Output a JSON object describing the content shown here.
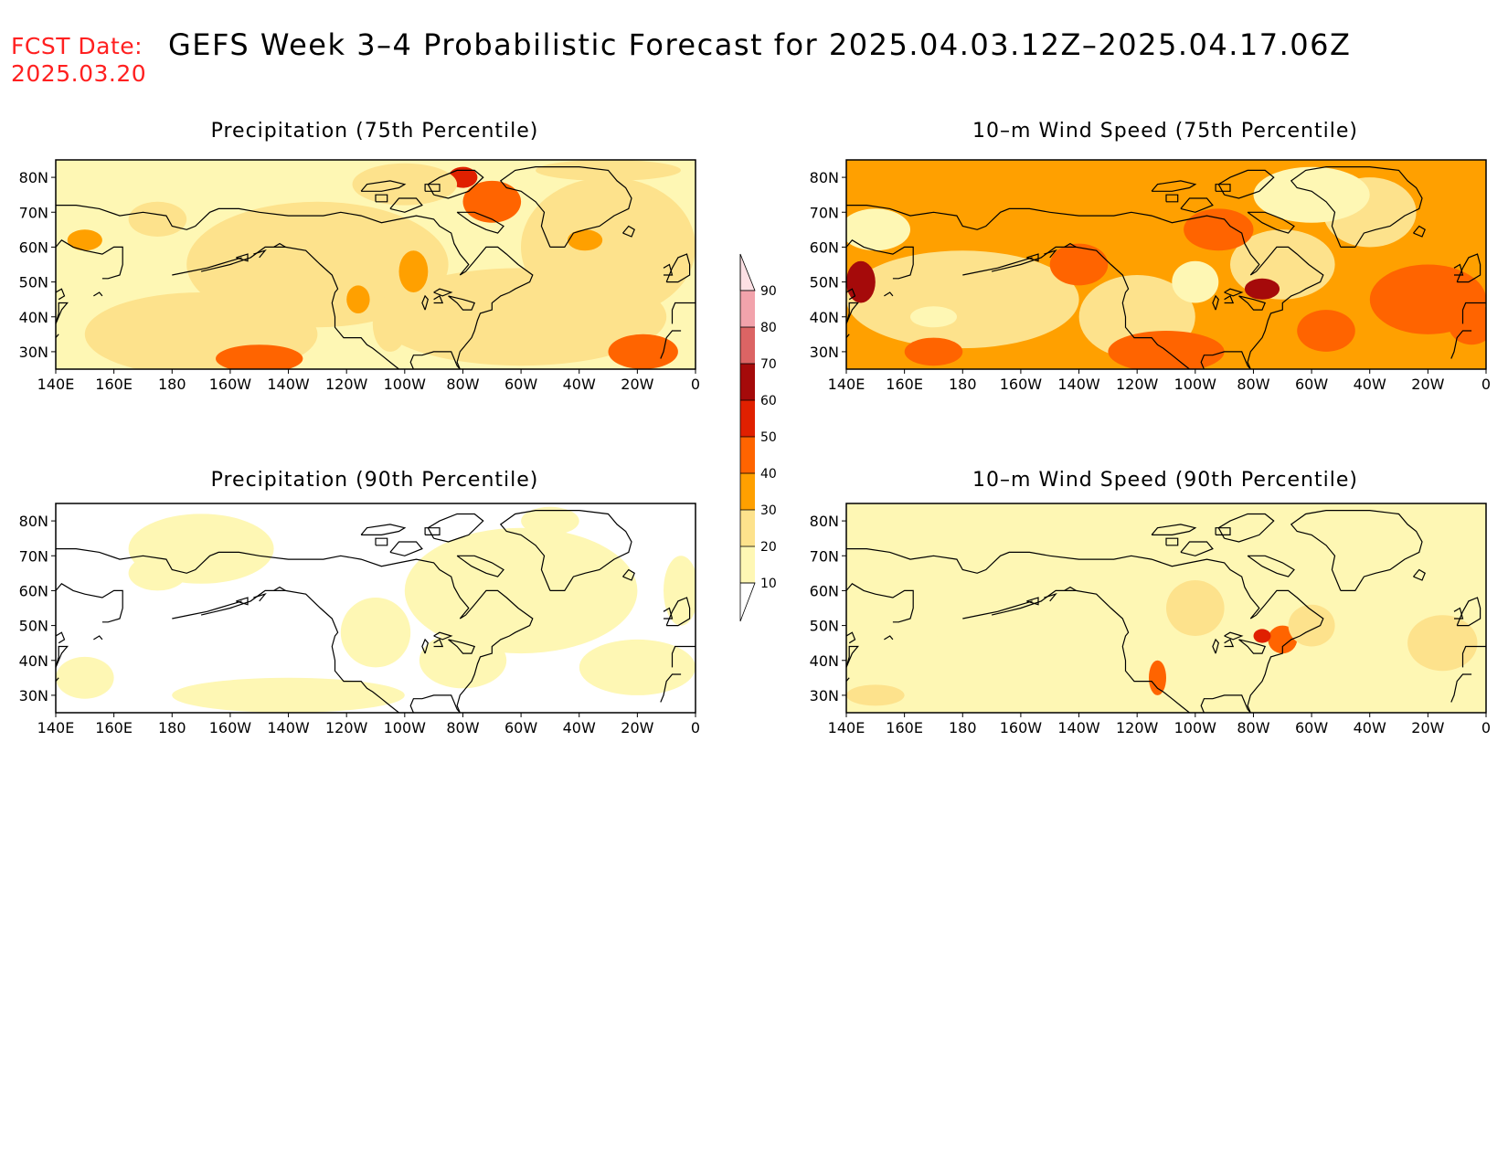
{
  "header": {
    "fcst_label": "FCST Date:",
    "fcst_date": "2025.03.20",
    "title": "GEFS Week 3–4 Probabilistic Forecast for 2025.04.03.12Z–2025.04.17.06Z"
  },
  "axes": {
    "lat_ticks": [
      "80N",
      "70N",
      "60N",
      "50N",
      "40N",
      "30N"
    ],
    "lat_values": [
      80,
      70,
      60,
      50,
      40,
      30
    ],
    "lon_ticks": [
      "140E",
      "160E",
      "180",
      "160W",
      "140W",
      "120W",
      "100W",
      "80W",
      "60W",
      "40W",
      "20W",
      "0"
    ],
    "lon_range": [
      140,
      360
    ],
    "lat_range": [
      25,
      85
    ]
  },
  "colorbar": {
    "levels": [
      "90",
      "80",
      "70",
      "60",
      "50",
      "40",
      "30",
      "20",
      "10"
    ],
    "colors": [
      "#fde0e4",
      "#f2a3ac",
      "#dc6464",
      "#a50a0a",
      "#e02000",
      "#ff6400",
      "#ffa000",
      "#fde28c",
      "#fef7b4"
    ]
  },
  "panels": [
    {
      "id": "precip-75",
      "title": "Precipitation (75th Percentile)",
      "base_color": "#fef7b4"
    },
    {
      "id": "wind-75",
      "title": "10–m Wind Speed (75th Percentile)",
      "base_color": "#ffa000"
    },
    {
      "id": "precip-90",
      "title": "Precipitation (90th Percentile)",
      "base_color": "#ffffff"
    },
    {
      "id": "wind-90",
      "title": "10–m Wind Speed (90th Percentile)",
      "base_color": "#fef7b4"
    }
  ]
}
